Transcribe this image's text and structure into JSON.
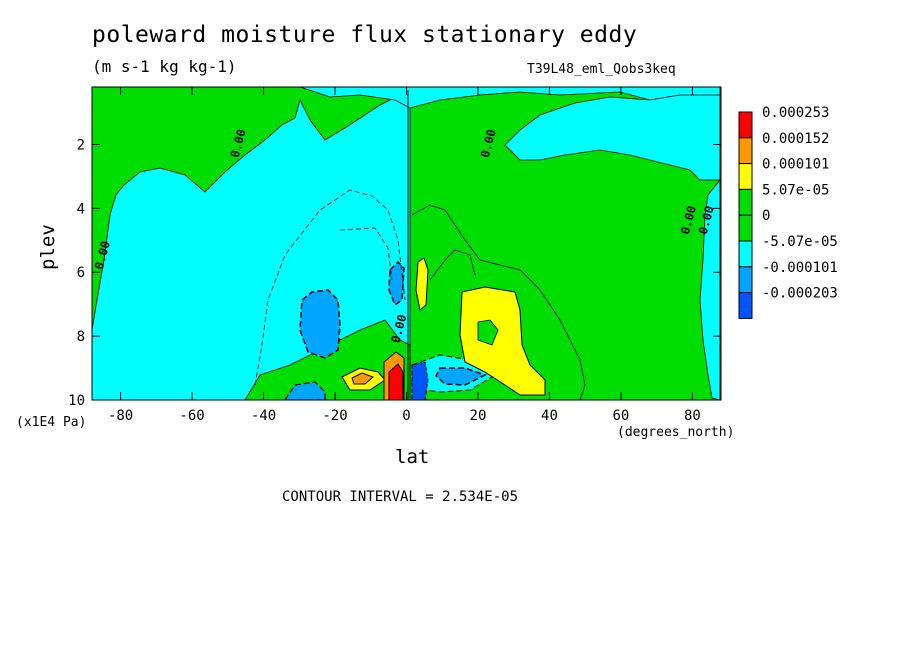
{
  "chart_data": {
    "type": "heatmap",
    "title": "poleward moisture flux stationary eddy",
    "units": "(m s-1 kg kg-1)",
    "run_label": "T39L48_eml_Qobs3keq",
    "xlabel": "lat",
    "x_unit": "(degrees_north)",
    "ylabel": "plev",
    "y_unit": "(x1E4 Pa)",
    "contour_interval_text": "CONTOUR INTERVAL = 2.534E-05",
    "xlim": [
      -88,
      88
    ],
    "ylim": [
      0.2,
      10
    ],
    "y_reversed": true,
    "x_ticks": [
      -80,
      -60,
      -40,
      -20,
      0,
      20,
      40,
      60,
      80
    ],
    "y_ticks": [
      2,
      4,
      6,
      8,
      10
    ],
    "contour_labels": [
      {
        "text": "0.00",
        "x": -46,
        "y": 2.0
      },
      {
        "text": "0.00",
        "x": 24,
        "y": 2.0
      },
      {
        "text": "0.00",
        "x": -84,
        "y": 5.5
      },
      {
        "text": "0.00",
        "x": -1,
        "y": 7.8
      },
      {
        "text": "0.00",
        "x": 80,
        "y": 4.4
      },
      {
        "text": "0.00",
        "x": 85,
        "y": 4.4
      }
    ],
    "legend": {
      "labels": [
        "0.000253",
        "0.000152",
        "0.000101",
        "5.07e-05",
        "0",
        "-5.07e-05",
        "-0.000101",
        "-0.000203"
      ],
      "colors": [
        "#ff0000",
        "#ff9900",
        "#ffff00",
        "#00dd00",
        "#00dd00",
        "#00ffff",
        "#00a6ff",
        "#0055ff"
      ]
    },
    "colors": {
      "green": "#00dd00",
      "cyan": "#00ffff",
      "lightblue": "#00a6ff",
      "blue": "#0055ff",
      "yellow": "#ffff00",
      "orange": "#ff9900",
      "red": "#ff0000"
    }
  }
}
